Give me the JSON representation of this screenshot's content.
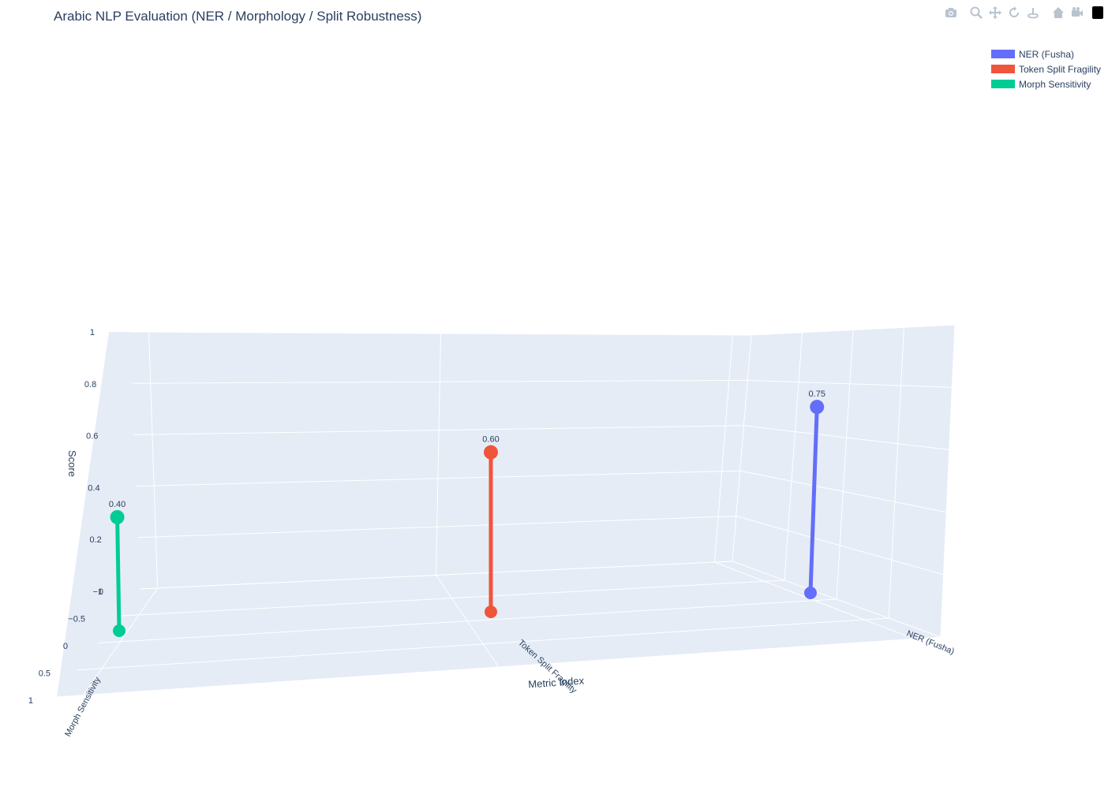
{
  "title": "Arabic NLP Evaluation (NER / Morphology / Split Robustness)",
  "modebar": {
    "icons": [
      "camera-icon",
      "zoom-icon",
      "pan-icon",
      "orbit-rotation-icon",
      "turntable-rotation-icon",
      "home-icon",
      "camera-view-icon",
      "plotly-logo-icon"
    ]
  },
  "chart_data": {
    "type": "scatter3d",
    "title": "Arabic NLP Evaluation (NER / Morphology / Split Robustness)",
    "x_axis": {
      "title": "Metric Index",
      "tick_labels": [
        "Morph Sensitivity",
        "Token Split Fragility",
        "NER (Fusha)"
      ]
    },
    "y_axis": {
      "title": "",
      "ticks": [
        "−1",
        "−0.5",
        "0",
        "0.5",
        "1"
      ]
    },
    "z_axis": {
      "title": "Score",
      "ticks": [
        "0",
        "0.2",
        "0.4",
        "0.6",
        "0.8",
        "1"
      ],
      "range": [
        0,
        1
      ]
    },
    "series": [
      {
        "name": "NER (Fusha)",
        "category": "NER (Fusha)",
        "value": 0.75,
        "label": "0.75",
        "color": "#636efa"
      },
      {
        "name": "Token Split Fragility",
        "category": "Token Split Fragility",
        "value": 0.6,
        "label": "0.60",
        "color": "#ef553b"
      },
      {
        "name": "Morph Sensitivity",
        "category": "Morph Sensitivity",
        "value": 0.4,
        "label": "0.40",
        "color": "#00cc96"
      }
    ],
    "legend_position": "top-right",
    "grid": true
  }
}
